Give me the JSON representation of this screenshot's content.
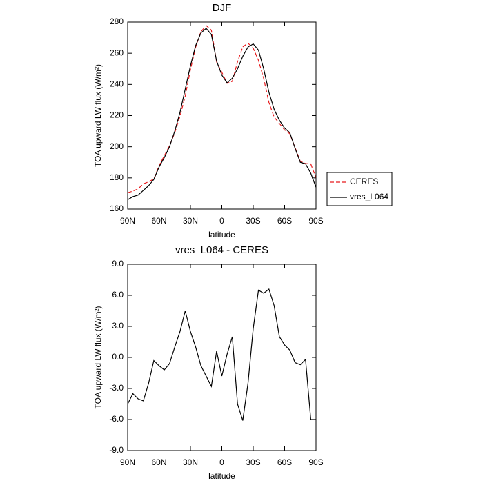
{
  "chart_data": [
    {
      "type": "line",
      "title": "DJF",
      "xlabel": "latitude",
      "ylabel": "TOA upward LW flux (W/m²)",
      "x": [
        90,
        85,
        80,
        75,
        70,
        65,
        60,
        55,
        50,
        45,
        40,
        35,
        30,
        25,
        20,
        15,
        10,
        5,
        0,
        -5,
        -10,
        -15,
        -20,
        -25,
        -30,
        -35,
        -40,
        -45,
        -50,
        -55,
        -60,
        -65,
        -70,
        -75,
        -80,
        -85,
        -90
      ],
      "series": [
        {
          "name": "CERES",
          "color": "#e8191c",
          "style": "dashed",
          "values": [
            170.5,
            171.5,
            173,
            176.2,
            177.5,
            179.3,
            187.8,
            194.2,
            200.6,
            209,
            219.5,
            232.5,
            249.5,
            264,
            273.8,
            277.8,
            274.8,
            254.4,
            247.8,
            240.7,
            242,
            254.5,
            264.1,
            266.5,
            263.2,
            255.5,
            243.8,
            228.4,
            219,
            215,
            210.8,
            208.3,
            199.5,
            190.7,
            189.2,
            189,
            180
          ]
        },
        {
          "name": "vres_L064",
          "color": "#000000",
          "style": "solid",
          "values": [
            166,
            168,
            169,
            172,
            175,
            179,
            187,
            193,
            200,
            210,
            222,
            237,
            252,
            265,
            273,
            276,
            272,
            255,
            246,
            241,
            244,
            250,
            258,
            264,
            266,
            262,
            250,
            235,
            224,
            217,
            212,
            209,
            199,
            190,
            189,
            183,
            174
          ]
        }
      ],
      "xlim": [
        90,
        -90
      ],
      "xticks": [
        {
          "value": 90,
          "label": "90N"
        },
        {
          "value": 60,
          "label": "60N"
        },
        {
          "value": 30,
          "label": "30N"
        },
        0,
        {
          "value": -30,
          "label": "30S"
        },
        {
          "value": -60,
          "label": "60S"
        },
        {
          "value": -90,
          "label": "90S"
        }
      ],
      "ylim": [
        160,
        280
      ],
      "yticks": [
        160,
        180,
        200,
        220,
        240,
        260,
        280
      ],
      "legend": "right"
    },
    {
      "type": "line",
      "title": "vres_L064 - CERES",
      "xlabel": "latitude",
      "ylabel": "TOA upward LW flux (W/m²)",
      "x": [
        90,
        85,
        80,
        75,
        70,
        65,
        60,
        55,
        50,
        45,
        40,
        35,
        30,
        25,
        20,
        15,
        10,
        5,
        0,
        -5,
        -10,
        -15,
        -20,
        -25,
        -30,
        -35,
        -40,
        -45,
        -50,
        -55,
        -60,
        -65,
        -70,
        -75,
        -80,
        -85,
        -90
      ],
      "color": "#000000",
      "values": [
        -4.5,
        -3.5,
        -4,
        -4.2,
        -2.5,
        -0.3,
        -0.8,
        -1.2,
        -0.6,
        1,
        2.5,
        4.5,
        2.5,
        1,
        -0.8,
        -1.8,
        -2.8,
        0.6,
        -1.8,
        0.3,
        2,
        -4.5,
        -6.1,
        -2.5,
        2.8,
        6.5,
        6.2,
        6.6,
        5,
        2,
        1.2,
        0.7,
        -0.5,
        -0.7,
        -0.2,
        -6,
        -6
      ],
      "xlim": [
        90,
        -90
      ],
      "xticks": [
        {
          "value": 90,
          "label": "90N"
        },
        {
          "value": 60,
          "label": "60N"
        },
        {
          "value": 30,
          "label": "30N"
        },
        0,
        {
          "value": -30,
          "label": "30S"
        },
        {
          "value": -60,
          "label": "60S"
        },
        {
          "value": -90,
          "label": "90S"
        }
      ],
      "ylim": [
        -9,
        9
      ],
      "yticks": [
        {
          "value": -9,
          "label": "-9.0"
        },
        {
          "value": -6,
          "label": "-6.0"
        },
        {
          "value": -3,
          "label": "-3.0"
        },
        {
          "value": 0,
          "label": "0.0"
        },
        {
          "value": 3,
          "label": "3.0"
        },
        {
          "value": 6,
          "label": "6.0"
        },
        {
          "value": 9,
          "label": "9.0"
        }
      ]
    }
  ]
}
